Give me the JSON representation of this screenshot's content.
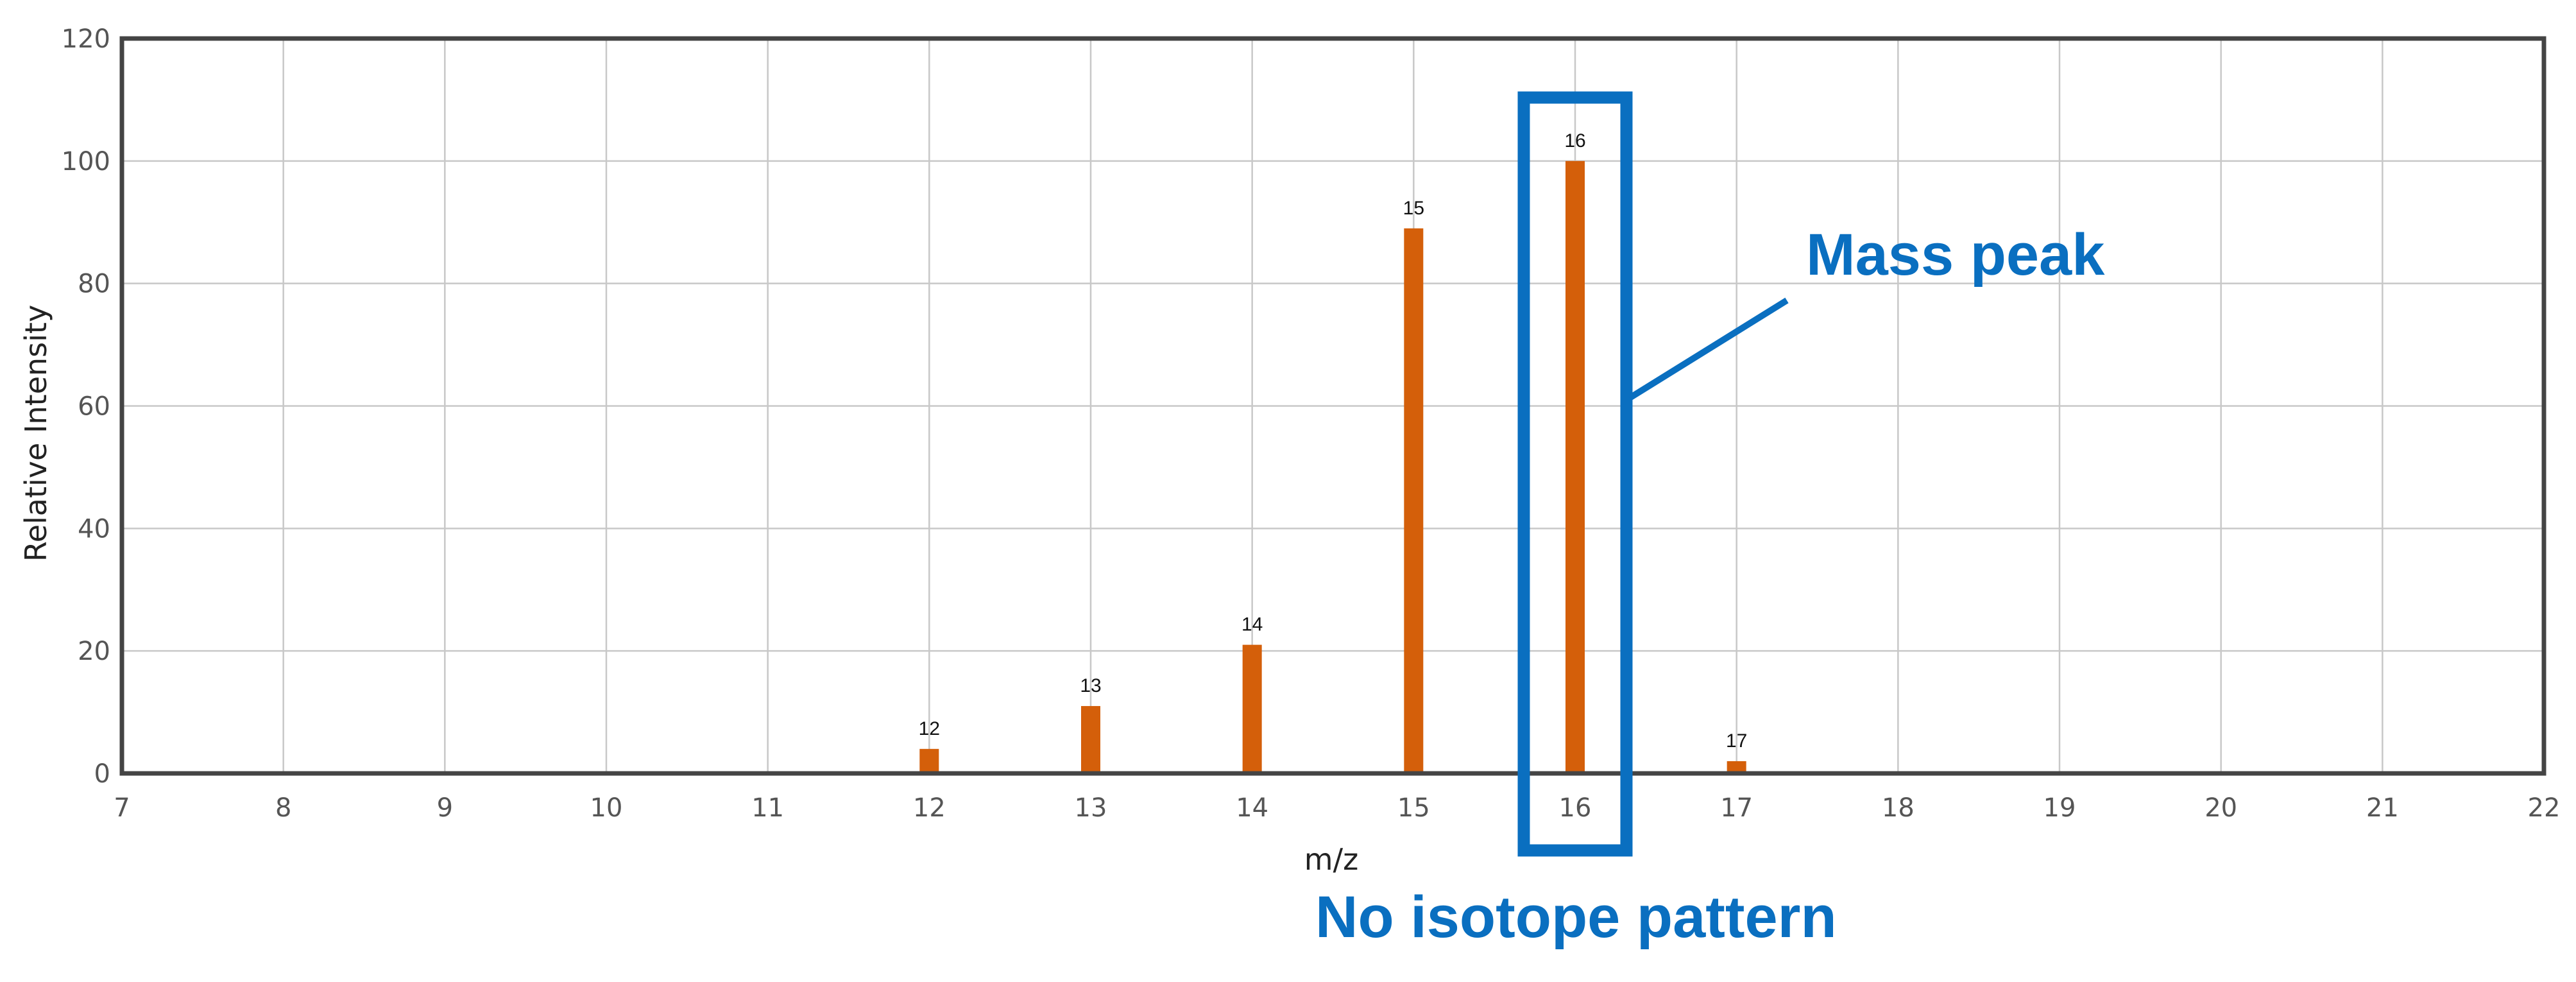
{
  "chart_data": {
    "type": "bar",
    "title": "",
    "xlabel": "m/z",
    "ylabel": "Relative Intensity",
    "xlim": [
      7,
      22
    ],
    "ylim": [
      0,
      120
    ],
    "x_ticks": [
      7,
      8,
      9,
      10,
      11,
      12,
      13,
      14,
      15,
      16,
      17,
      18,
      19,
      20,
      21,
      22
    ],
    "y_ticks": [
      0,
      20,
      40,
      60,
      80,
      100,
      120
    ],
    "grid": true,
    "bar_color": "#d45f0a",
    "series": [
      {
        "x": [
          12,
          13,
          14,
          15,
          16,
          17
        ],
        "values": [
          4,
          11,
          21,
          89,
          100,
          2
        ],
        "labels": [
          "12",
          "13",
          "14",
          "15",
          "16",
          "17"
        ]
      }
    ],
    "annotations": {
      "color": "#0a6fc0",
      "highlight_x": 16,
      "mass_peak_label": "Mass peak",
      "isotope_label": "No isotope pattern"
    }
  }
}
